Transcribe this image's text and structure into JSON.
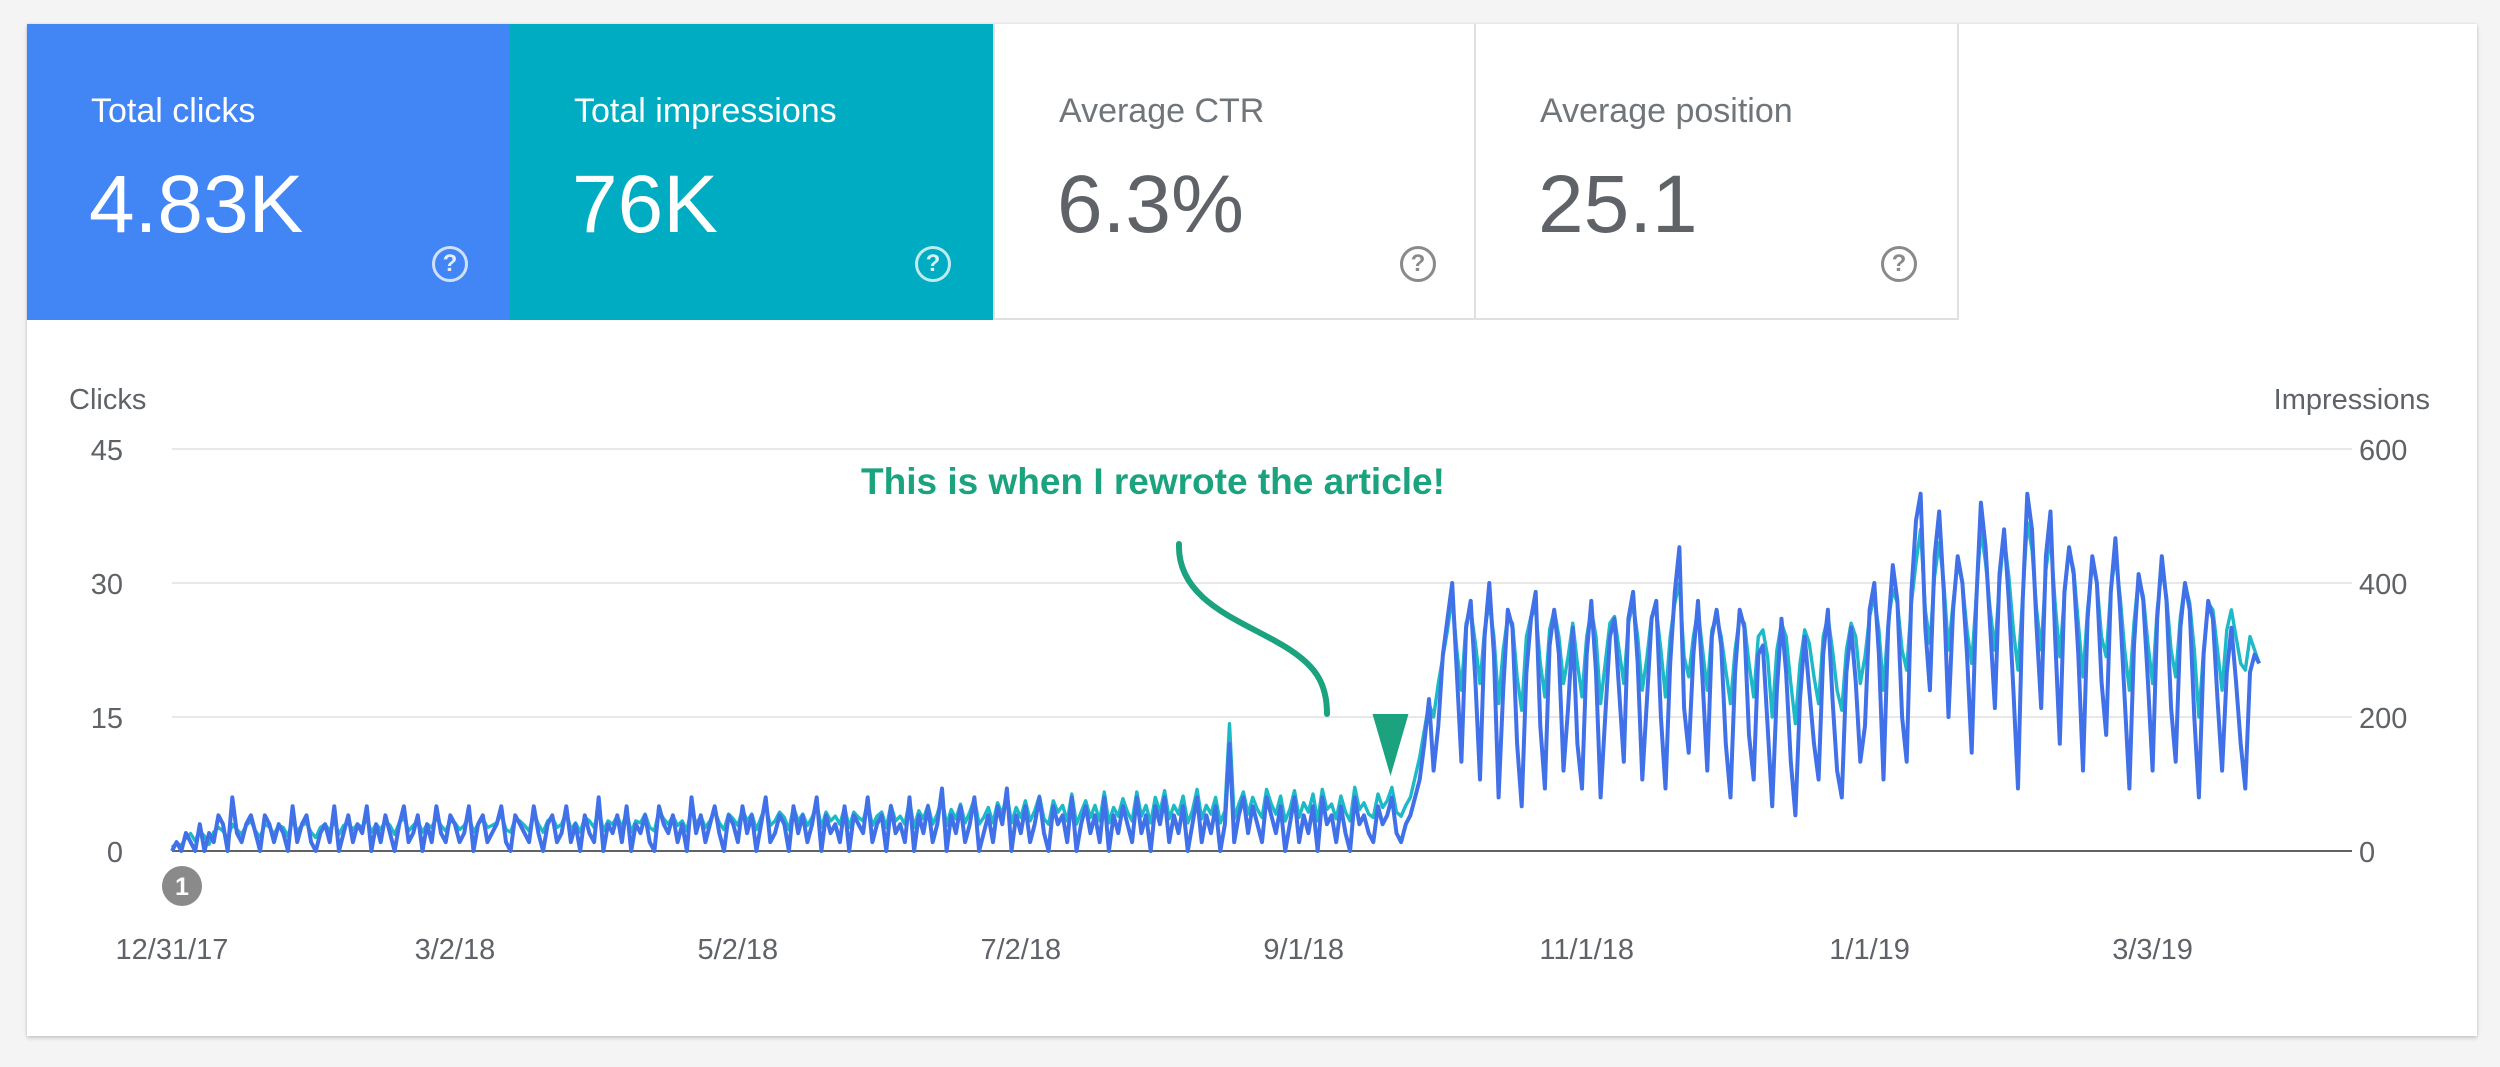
{
  "metrics": [
    {
      "label": "Total clicks",
      "value": "4.83K",
      "color": "#4285f4"
    },
    {
      "label": "Total impressions",
      "value": "76K",
      "color": "#00acc1"
    },
    {
      "label": "Average CTR",
      "value": "6.3%",
      "color": "#ffffff"
    },
    {
      "label": "Average position",
      "value": "25.1",
      "color": "#ffffff"
    }
  ],
  "help_glyph": "?",
  "chart_data": {
    "type": "line",
    "ylabel_left": "Clicks",
    "ylabel_right": "Impressions",
    "y_left_ticks": [
      0,
      15,
      30,
      45
    ],
    "y_right_ticks": [
      0,
      200,
      400,
      600
    ],
    "ylim_left": [
      0,
      45
    ],
    "ylim_right": [
      0,
      600
    ],
    "x_tick_labels": [
      "12/31/17",
      "3/2/18",
      "5/2/18",
      "7/2/18",
      "9/1/18",
      "11/1/18",
      "1/1/19",
      "3/3/19"
    ],
    "x_start": "12/31/17",
    "x_end": "4/15/19",
    "grid": true,
    "annotation_marker": {
      "label": "1",
      "x": "12/31/17"
    },
    "annotation": {
      "text": "This is when I rewrote the article!",
      "color": "#1aa37e",
      "points_to": "9/21/18"
    },
    "series": [
      {
        "name": "Clicks",
        "axis": "left",
        "color": "#4171e8",
        "values": [
          0,
          1,
          0,
          2,
          1,
          0,
          3,
          0,
          2,
          1,
          4,
          3,
          0,
          6,
          2,
          1,
          3,
          4,
          2,
          0,
          4,
          3,
          1,
          3,
          2,
          0,
          5,
          1,
          3,
          4,
          1,
          0,
          2,
          3,
          1,
          5,
          0,
          2,
          4,
          1,
          3,
          2,
          5,
          0,
          3,
          1,
          4,
          2,
          0,
          3,
          5,
          1,
          2,
          4,
          0,
          3,
          1,
          5,
          2,
          1,
          4,
          3,
          1,
          2,
          5,
          0,
          3,
          4,
          1,
          2,
          3,
          5,
          1,
          0,
          4,
          3,
          2,
          1,
          5,
          2,
          0,
          3,
          4,
          1,
          2,
          5,
          1,
          3,
          0,
          4,
          2,
          1,
          6,
          0,
          3,
          2,
          4,
          1,
          5,
          0,
          3,
          2,
          4,
          1,
          0,
          5,
          3,
          2,
          4,
          1,
          3,
          0,
          6,
          2,
          4,
          1,
          3,
          5,
          2,
          0,
          4,
          3,
          1,
          5,
          2,
          4,
          0,
          3,
          6,
          1,
          2,
          4,
          3,
          0,
          5,
          2,
          4,
          1,
          3,
          6,
          0,
          4,
          2,
          3,
          1,
          5,
          0,
          4,
          3,
          2,
          6,
          1,
          3,
          4,
          0,
          5,
          2,
          3,
          1,
          6,
          0,
          4,
          2,
          5,
          1,
          3,
          7,
          0,
          4,
          2,
          5,
          1,
          3,
          6,
          0,
          2,
          4,
          1,
          5,
          3,
          7,
          0,
          4,
          2,
          5,
          1,
          3,
          6,
          2,
          0,
          5,
          3,
          4,
          1,
          6,
          0,
          3,
          5,
          2,
          4,
          1,
          6,
          0,
          4,
          2,
          5,
          3,
          1,
          6,
          2,
          4,
          0,
          5,
          3,
          6,
          1,
          4,
          2,
          5,
          0,
          3,
          6,
          1,
          4,
          2,
          5,
          0,
          3,
          12,
          1,
          4,
          6,
          2,
          5,
          3,
          1,
          6,
          4,
          2,
          5,
          0,
          3,
          6,
          1,
          4,
          2,
          5,
          0,
          6,
          3,
          4,
          1,
          5,
          2,
          0,
          6,
          3,
          4,
          2,
          1,
          5,
          3,
          4,
          6,
          2,
          1,
          3,
          4,
          6,
          8,
          12,
          17,
          9,
          14,
          22,
          26,
          30,
          20,
          10,
          25,
          28,
          19,
          8,
          24,
          30,
          22,
          6,
          18,
          27,
          25,
          12,
          5,
          20,
          26,
          29,
          14,
          7,
          23,
          27,
          22,
          9,
          16,
          25,
          12,
          7,
          22,
          28,
          20,
          6,
          15,
          24,
          26,
          18,
          10,
          26,
          29,
          21,
          8,
          17,
          26,
          28,
          15,
          7,
          21,
          29,
          34,
          16,
          11,
          22,
          28,
          19,
          9,
          24,
          27,
          23,
          12,
          6,
          20,
          27,
          25,
          13,
          8,
          22,
          23,
          14,
          5,
          18,
          26,
          20,
          10,
          4,
          17,
          24,
          18,
          12,
          8,
          22,
          27,
          17,
          9,
          6,
          20,
          25,
          19,
          10,
          14,
          27,
          30,
          22,
          8,
          25,
          32,
          28,
          15,
          10,
          29,
          37,
          40,
          25,
          18,
          33,
          38,
          29,
          15,
          27,
          33,
          30,
          22,
          11,
          28,
          39,
          34,
          25,
          16,
          31,
          36,
          28,
          18,
          7,
          28,
          40,
          36,
          25,
          16,
          33,
          38,
          24,
          12,
          29,
          34,
          31,
          22,
          9,
          26,
          33,
          30,
          19,
          13,
          29,
          35,
          27,
          17,
          7,
          23,
          31,
          28,
          19,
          9,
          26,
          33,
          28,
          16,
          10,
          25,
          30,
          27,
          15,
          6,
          22,
          28,
          26,
          17,
          9,
          20,
          25,
          19,
          12,
          7,
          20,
          22,
          21
        ]
      },
      {
        "name": "Impressions",
        "axis": "right",
        "color": "#12b5c3",
        "values": [
          5,
          12,
          8,
          20,
          26,
          15,
          30,
          22,
          10,
          28,
          35,
          30,
          18,
          40,
          32,
          25,
          38,
          45,
          30,
          20,
          40,
          36,
          25,
          38,
          35,
          22,
          45,
          30,
          38,
          42,
          28,
          20,
          35,
          40,
          30,
          45,
          25,
          38,
          42,
          32,
          40,
          35,
          48,
          28,
          40,
          32,
          45,
          38,
          25,
          42,
          50,
          30,
          38,
          45,
          28,
          40,
          35,
          50,
          38,
          30,
          45,
          42,
          32,
          38,
          52,
          28,
          40,
          48,
          35,
          38,
          42,
          55,
          32,
          28,
          48,
          45,
          38,
          30,
          55,
          40,
          28,
          45,
          50,
          35,
          40,
          58,
          32,
          42,
          28,
          50,
          45,
          35,
          62,
          30,
          45,
          40,
          52,
          35,
          58,
          28,
          45,
          42,
          55,
          35,
          30,
          60,
          48,
          40,
          52,
          38,
          45,
          30,
          65,
          40,
          52,
          35,
          45,
          60,
          42,
          32,
          55,
          48,
          38,
          62,
          45,
          55,
          32,
          50,
          68,
          38,
          45,
          58,
          50,
          32,
          65,
          45,
          55,
          38,
          50,
          70,
          35,
          58,
          45,
          52,
          40,
          65,
          35,
          58,
          50,
          45,
          72,
          38,
          52,
          58,
          35,
          68,
          45,
          52,
          40,
          75,
          35,
          60,
          48,
          68,
          40,
          55,
          80,
          38,
          62,
          48,
          70,
          42,
          58,
          78,
          40,
          50,
          65,
          42,
          72,
          55,
          85,
          42,
          65,
          50,
          75,
          45,
          60,
          82,
          48,
          40,
          75,
          58,
          68,
          45,
          85,
          40,
          58,
          75,
          50,
          68,
          45,
          88,
          42,
          65,
          52,
          78,
          58,
          45,
          88,
          52,
          68,
          42,
          80,
          58,
          90,
          48,
          68,
          55,
          82,
          42,
          60,
          92,
          48,
          68,
          55,
          80,
          42,
          60,
          190,
          48,
          70,
          88,
          55,
          80,
          62,
          50,
          92,
          70,
          55,
          82,
          45,
          62,
          90,
          50,
          72,
          58,
          85,
          45,
          92,
          62,
          70,
          48,
          82,
          58,
          45,
          95,
          62,
          72,
          55,
          50,
          85,
          65,
          75,
          95,
          58,
          52,
          68,
          80,
          110,
          140,
          180,
          220,
          200,
          250,
          290,
          330,
          380,
          300,
          240,
          340,
          360,
          310,
          250,
          330,
          370,
          320,
          220,
          300,
          350,
          340,
          260,
          210,
          320,
          350,
          360,
          280,
          230,
          330,
          360,
          320,
          250,
          290,
          340,
          280,
          230,
          320,
          360,
          320,
          220,
          280,
          340,
          350,
          300,
          250,
          340,
          370,
          320,
          240,
          290,
          350,
          360,
          300,
          230,
          320,
          370,
          400,
          290,
          260,
          320,
          360,
          300,
          240,
          330,
          350,
          320,
          270,
          220,
          300,
          350,
          340,
          280,
          230,
          320,
          330,
          290,
          200,
          300,
          340,
          320,
          250,
          190,
          280,
          330,
          310,
          260,
          220,
          320,
          350,
          300,
          240,
          210,
          300,
          340,
          320,
          250,
          290,
          350,
          380,
          330,
          240,
          340,
          390,
          370,
          300,
          270,
          370,
          430,
          480,
          360,
          310,
          410,
          460,
          400,
          300,
          370,
          430,
          400,
          330,
          280,
          380,
          480,
          430,
          360,
          300,
          400,
          470,
          410,
          330,
          270,
          380,
          490,
          450,
          360,
          300,
          420,
          470,
          370,
          290,
          380,
          450,
          420,
          340,
          260,
          360,
          430,
          400,
          320,
          290,
          390,
          440,
          380,
          300,
          240,
          340,
          410,
          380,
          310,
          250,
          360,
          420,
          380,
          300,
          260,
          350,
          400,
          370,
          300,
          200,
          300,
          370,
          360,
          300,
          240,
          330,
          360,
          320,
          280,
          270,
          320,
          300,
          280
        ]
      }
    ]
  }
}
